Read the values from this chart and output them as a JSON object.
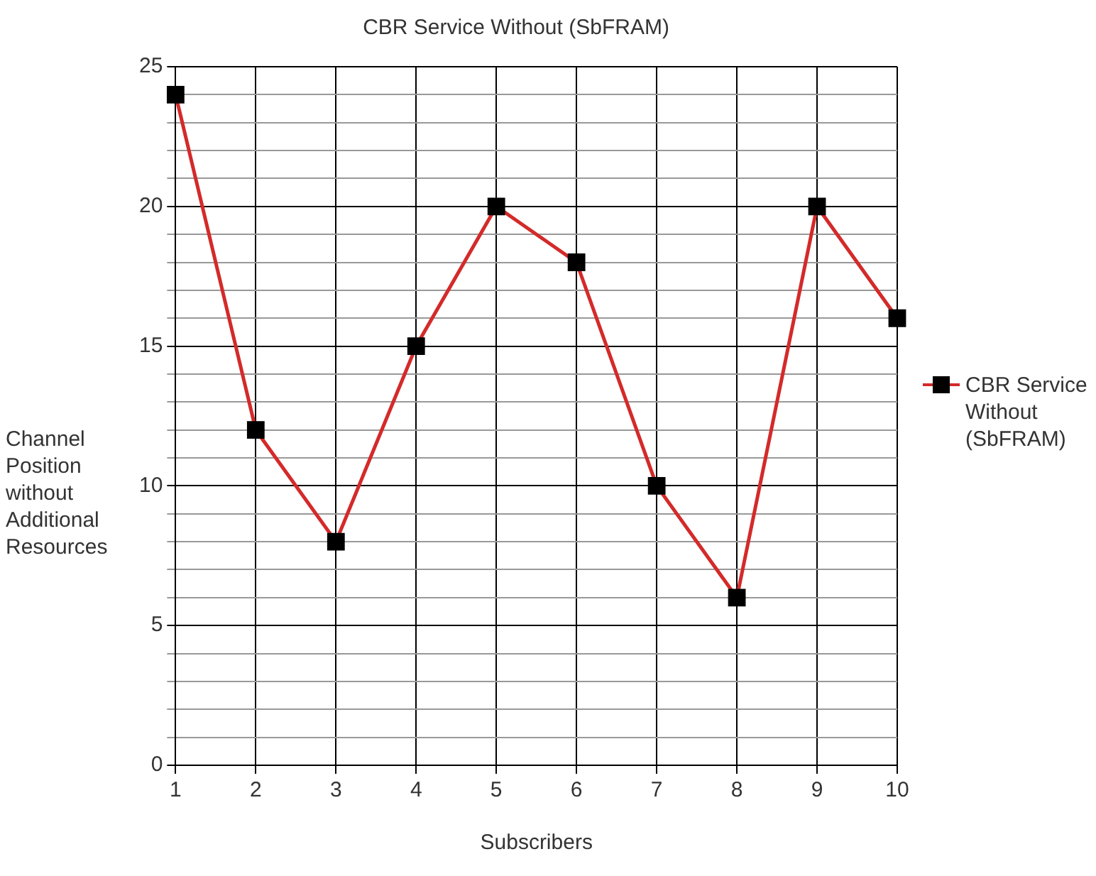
{
  "chart_data": {
    "type": "line",
    "title": "CBR Service Without (SbFRAM)",
    "xlabel": "Subscribers",
    "ylabel": "Channel Position without Additional Resources",
    "x": [
      1,
      2,
      3,
      4,
      5,
      6,
      7,
      8,
      9,
      10
    ],
    "series": [
      {
        "name": "CBR Service Without (SbFRAM)",
        "color": "#d42a2a",
        "values": [
          24,
          12,
          8,
          15,
          20,
          18,
          10,
          6,
          20,
          16
        ]
      }
    ],
    "xlim": [
      1,
      10
    ],
    "xticks": [
      1,
      2,
      3,
      4,
      5,
      6,
      7,
      8,
      9,
      10
    ],
    "ylim": [
      0,
      25
    ],
    "yticks": [
      0,
      {
        "value": 1,
        "label": null
      },
      {
        "value": 2,
        "label": null
      },
      {
        "value": 3,
        "label": null
      },
      {
        "value": 4,
        "label": null
      },
      5,
      {
        "value": 6,
        "label": null
      },
      {
        "value": 7,
        "label": null
      },
      {
        "value": 8,
        "label": null
      },
      {
        "value": 9,
        "label": null
      },
      10,
      {
        "value": 11,
        "label": null
      },
      {
        "value": 12,
        "label": null
      },
      {
        "value": 13,
        "label": null
      },
      {
        "value": 14,
        "label": null
      },
      15,
      {
        "value": 16,
        "label": null
      },
      {
        "value": 17,
        "label": null
      },
      {
        "value": 18,
        "label": null
      },
      {
        "value": 19,
        "label": null
      },
      20,
      {
        "value": 21,
        "label": null
      },
      {
        "value": 22,
        "label": null
      },
      {
        "value": 23,
        "label": null
      },
      {
        "value": 24,
        "label": null
      },
      25
    ],
    "grid": true,
    "legend": "right",
    "marker": "square",
    "line_style": "solid"
  }
}
